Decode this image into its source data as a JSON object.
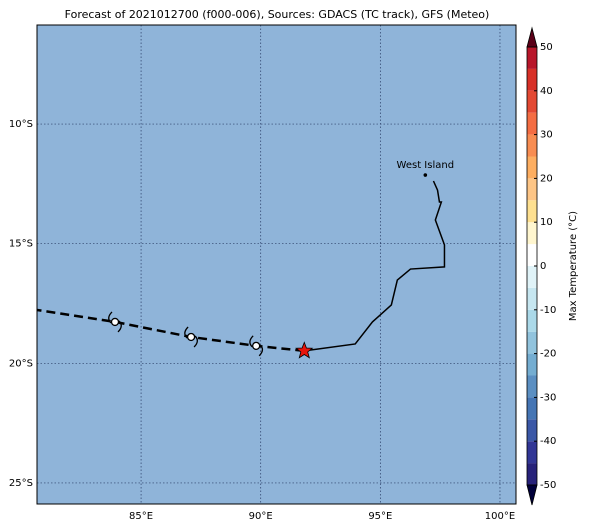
{
  "chart_data": {
    "type": "map",
    "title": "Forecast of 2021012700 (f000-006), Sources: GDACS (TC track), GFS (Meteo)",
    "ocean_color": "#8fb4d9",
    "xlim": [
      80.65,
      100.67
    ],
    "ylim": [
      -25.88,
      -5.86
    ],
    "xticks": [
      {
        "value": 85,
        "label": "85°E"
      },
      {
        "value": 90,
        "label": "90°E"
      },
      {
        "value": 95,
        "label": "95°E"
      },
      {
        "value": 100,
        "label": "100°E"
      }
    ],
    "yticks": [
      {
        "value": -10,
        "label": "10°S"
      },
      {
        "value": -15,
        "label": "15°S"
      },
      {
        "value": -20,
        "label": "20°S"
      },
      {
        "value": -25,
        "label": "25°S"
      }
    ],
    "grid": true,
    "track": {
      "lon": [
        97.22,
        97.39,
        97.47,
        97.55,
        97.3,
        97.68,
        97.68,
        96.26,
        95.71,
        95.46,
        94.67,
        93.95,
        91.82
      ],
      "lat": [
        -12.38,
        -12.76,
        -13.26,
        -13.26,
        -14.01,
        -15.05,
        -15.97,
        -16.06,
        -16.52,
        -17.56,
        -18.27,
        -19.19,
        -19.48
      ]
    },
    "current": {
      "lon": 91.82,
      "lat": -19.48,
      "color": "#e8140c"
    },
    "forecast": {
      "lon": [
        91.82,
        89.81,
        87.09,
        83.91,
        80.65
      ],
      "lat": [
        -19.48,
        -19.27,
        -18.9,
        -18.27,
        -17.77
      ],
      "symbols": [
        1,
        2,
        3
      ]
    },
    "place": {
      "label": "West Island",
      "lon": 96.88,
      "lat": -12.13
    },
    "colorbar": {
      "label": "Max Temperature (°C)",
      "ticks": [
        -50,
        -40,
        -30,
        -20,
        -10,
        0,
        10,
        20,
        30,
        40,
        50
      ],
      "levels": [
        -50,
        -45,
        -40,
        -35,
        -30,
        -25,
        -20,
        -15,
        -10,
        -5,
        0,
        5,
        10,
        15,
        20,
        25,
        30,
        35,
        40,
        45,
        50
      ],
      "colors": [
        "#27227a",
        "#313695",
        "#3a57a6",
        "#4575b4",
        "#5b8fc2",
        "#74add1",
        "#91c3dd",
        "#abd9e9",
        "#c6e6f0",
        "#e0f3f8",
        "#ffffff",
        "#fff6cf",
        "#fee090",
        "#fdc586",
        "#fdae61",
        "#f88d52",
        "#f46d43",
        "#e34933",
        "#d73027",
        "#b8162a",
        "#8c0a26"
      ],
      "under_color": "#00003a",
      "over_color": "#5a0018"
    }
  }
}
